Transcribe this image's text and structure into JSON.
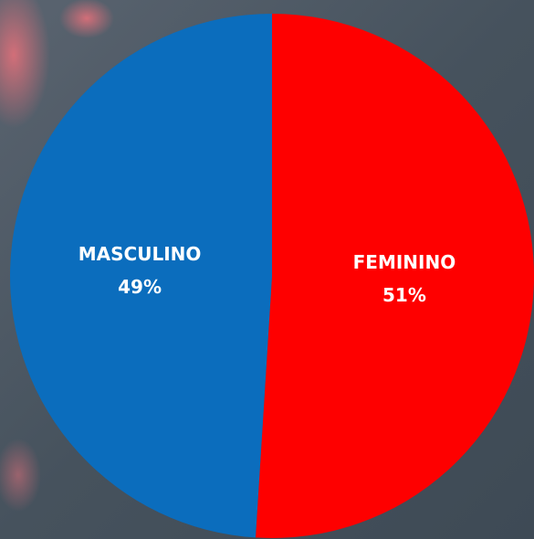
{
  "chart_data": {
    "type": "pie",
    "categories": [
      "FEMININO",
      "MASCULINO"
    ],
    "values": [
      51,
      49
    ],
    "value_labels": [
      "51%",
      "49%"
    ],
    "colors": [
      "#fe0000",
      "#0b6dbd"
    ]
  }
}
